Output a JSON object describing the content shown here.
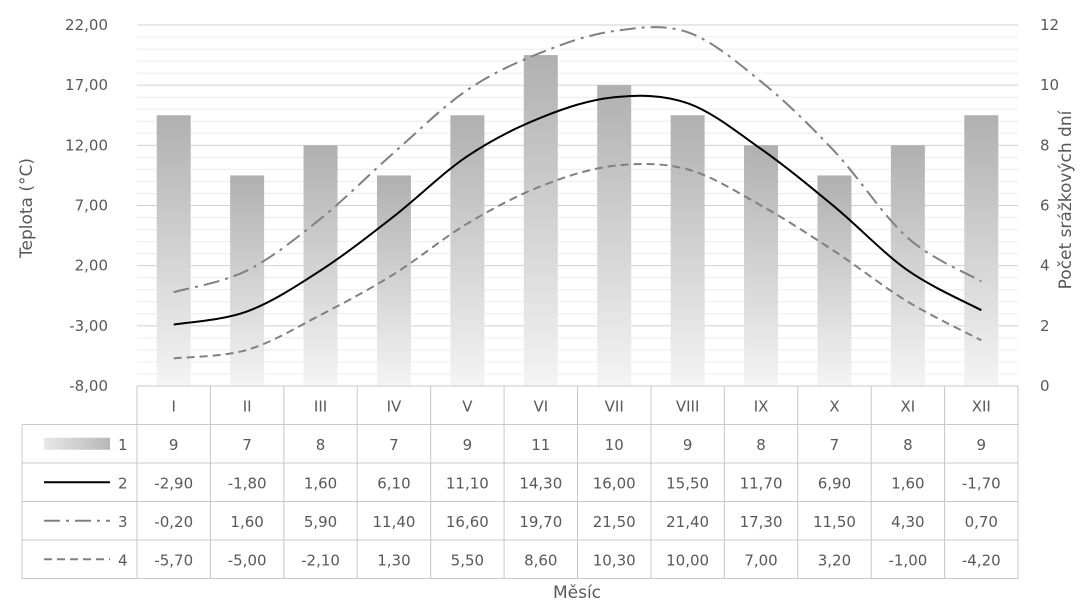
{
  "chart_data": {
    "type": "bar",
    "categories": [
      "I",
      "II",
      "III",
      "IV",
      "V",
      "VI",
      "VII",
      "VIII",
      "IX",
      "X",
      "XI",
      "XII"
    ],
    "series": [
      {
        "name": "1",
        "kind": "bar",
        "axis": "right",
        "values": [
          9,
          7,
          8,
          7,
          9,
          11,
          10,
          9,
          8,
          7,
          8,
          9
        ]
      },
      {
        "name": "2",
        "kind": "line",
        "style": "solid",
        "axis": "left",
        "values": [
          -2.9,
          -1.8,
          1.6,
          6.1,
          11.1,
          14.3,
          16.0,
          15.5,
          11.7,
          6.9,
          1.6,
          -1.7
        ]
      },
      {
        "name": "3",
        "kind": "line",
        "style": "dash-dot",
        "axis": "left",
        "values": [
          -0.2,
          1.6,
          5.9,
          11.4,
          16.6,
          19.7,
          21.5,
          21.4,
          17.3,
          11.5,
          4.3,
          0.7
        ]
      },
      {
        "name": "4",
        "kind": "line",
        "style": "dashed",
        "axis": "left",
        "values": [
          -5.7,
          -5.0,
          -2.1,
          1.3,
          5.5,
          8.6,
          10.3,
          10.0,
          7.0,
          3.2,
          -1.0,
          -4.2
        ]
      }
    ],
    "table_rows": [
      [
        "9",
        "7",
        "8",
        "7",
        "9",
        "11",
        "10",
        "9",
        "8",
        "7",
        "8",
        "9"
      ],
      [
        "-2,90",
        "-1,80",
        "1,60",
        "6,10",
        "11,10",
        "14,30",
        "16,00",
        "15,50",
        "11,70",
        "6,90",
        "1,60",
        "-1,70"
      ],
      [
        "-0,20",
        "1,60",
        "5,90",
        "11,40",
        "16,60",
        "19,70",
        "21,50",
        "21,40",
        "17,30",
        "11,50",
        "4,30",
        "0,70"
      ],
      [
        "-5,70",
        "-5,00",
        "-2,10",
        "1,30",
        "5,50",
        "8,60",
        "10,30",
        "10,00",
        "7,00",
        "3,20",
        "-1,00",
        "-4,20"
      ]
    ],
    "xlabel": "Měsíc",
    "ylabel": "Teplota (°C)",
    "y2label": "Počet srážkových dní",
    "ylim": [
      -8,
      22
    ],
    "y2lim": [
      0,
      12
    ],
    "y_ticks": [
      "22,00",
      "17,00",
      "12,00",
      "7,00",
      "2,00",
      "-3,00",
      "-8,00"
    ],
    "y2_ticks": [
      "12",
      "10",
      "8",
      "6",
      "4",
      "2",
      "0"
    ],
    "grid": true,
    "legend": "data-table",
    "colors": {
      "bar": "#bfbfbf",
      "line2": "#000000",
      "line3": "#808080",
      "line4": "#808080",
      "grid": "#d9d9d9",
      "text": "#595959"
    }
  }
}
